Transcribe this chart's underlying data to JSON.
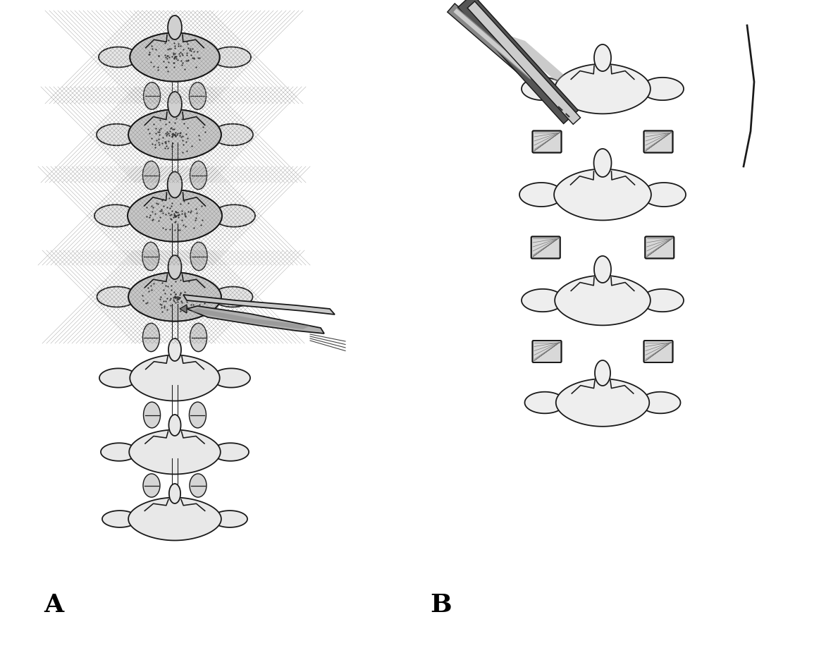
{
  "figure_width": 11.89,
  "figure_height": 9.37,
  "dpi": 100,
  "background_color": "#ffffff",
  "label_A": "A",
  "label_B": "B",
  "label_fontsize": 26,
  "line_color": "#1a1a1a",
  "lw": 1.3
}
